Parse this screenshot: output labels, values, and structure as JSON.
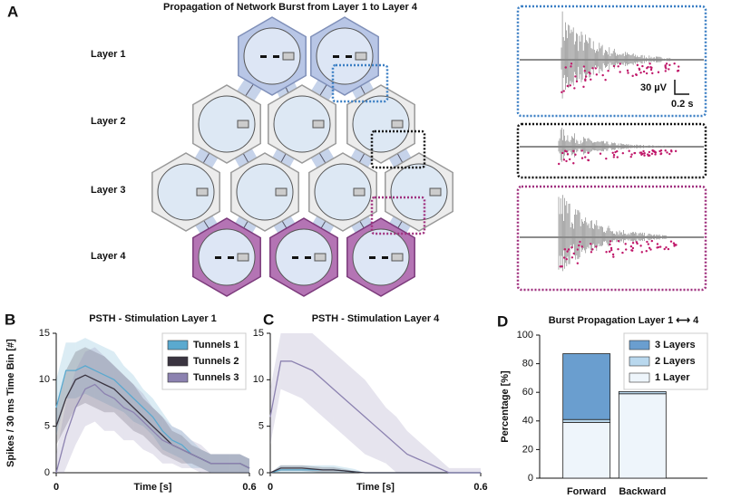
{
  "panel_a": {
    "letter": "A",
    "title": "Propagation of Network Burst from Layer 1 to Layer 4",
    "layers": [
      "Layer 1",
      "Layer 2",
      "Layer 3",
      "Layer 4"
    ],
    "scale_bar": {
      "voltage": "30 µV",
      "time": "0.2 s"
    }
  },
  "chart_data": [
    {
      "type": "line",
      "panel": "B",
      "title": "PSTH - Stimulation Layer 1",
      "x_label": "Time [s]",
      "y_label": "Spikes / 30 ms Time Bin [#]",
      "x": [
        0,
        0.03,
        0.06,
        0.09,
        0.12,
        0.15,
        0.18,
        0.21,
        0.24,
        0.27,
        0.3,
        0.33,
        0.36,
        0.39,
        0.42,
        0.45,
        0.48,
        0.51,
        0.54,
        0.57,
        0.6
      ],
      "xlim": [
        0,
        0.6
      ],
      "xticks": [
        0,
        0.6
      ],
      "ylim": [
        0,
        15
      ],
      "yticks": [
        0,
        5,
        10,
        15
      ],
      "legend": "upper right",
      "series": [
        {
          "name": "Tunnels 1",
          "color": "#5aa9cf",
          "values": [
            7,
            11,
            11,
            11.5,
            11,
            10.5,
            10,
            9,
            8,
            7,
            6,
            4.5,
            3.5,
            3,
            2,
            1.5,
            1,
            1,
            1,
            1,
            0.5
          ],
          "error": [
            3,
            3,
            3,
            3,
            3,
            3,
            3,
            2.5,
            2.5,
            2,
            2,
            2,
            1.5,
            1.5,
            1.5,
            1,
            1,
            1,
            1,
            1,
            1
          ]
        },
        {
          "name": "Tunnels 2",
          "color": "#3a3440",
          "values": [
            5,
            8,
            10,
            10.5,
            10,
            9.5,
            9,
            8,
            7,
            6,
            5,
            4,
            3,
            2.5,
            2,
            1.5,
            1,
            1,
            1,
            1,
            0.5
          ],
          "error": [
            2,
            3,
            3,
            3,
            3,
            3,
            2.5,
            2.5,
            2.5,
            2,
            2,
            2,
            1.5,
            1.5,
            1,
            1,
            1,
            1,
            1,
            1,
            1
          ]
        },
        {
          "name": "Tunnels 3",
          "color": "#8c82b0",
          "values": [
            0,
            4,
            7,
            9,
            9.5,
            8.5,
            8,
            7,
            6.5,
            5.5,
            4.5,
            3.5,
            3,
            2.5,
            2,
            1.5,
            1,
            1,
            1,
            1,
            0.5
          ],
          "error": [
            2,
            3.5,
            4,
            4,
            4,
            4,
            3.5,
            3.5,
            3,
            3,
            2.5,
            2.5,
            2,
            2,
            1.5,
            1.5,
            1,
            1,
            1,
            1,
            1
          ]
        }
      ]
    },
    {
      "type": "line",
      "panel": "C",
      "title": "PSTH - Stimulation Layer 4",
      "x_label": "Time [s]",
      "x": [
        0,
        0.03,
        0.06,
        0.09,
        0.12,
        0.15,
        0.18,
        0.21,
        0.24,
        0.27,
        0.3,
        0.33,
        0.36,
        0.39,
        0.42,
        0.45,
        0.48,
        0.51,
        0.54,
        0.57,
        0.6
      ],
      "xlim": [
        0,
        0.6
      ],
      "xticks": [
        0,
        0.6
      ],
      "ylim": [
        0,
        15
      ],
      "yticks": [
        0,
        5,
        10,
        15
      ],
      "series": [
        {
          "color": "#5aa9cf",
          "values": [
            0,
            0.3,
            0.3,
            0.3,
            0.3,
            0.3,
            0.3,
            0.2,
            0.1,
            0,
            0,
            0,
            0,
            0,
            0,
            0,
            0,
            0,
            0,
            0,
            0
          ],
          "error": [
            0,
            0.5,
            0.5,
            0.5,
            0.5,
            0.5,
            0.5,
            0.4,
            0.3,
            0,
            0,
            0,
            0,
            0,
            0,
            0,
            0,
            0,
            0,
            0,
            0
          ]
        },
        {
          "color": "#3a3440",
          "values": [
            0,
            0.5,
            0.5,
            0.5,
            0.4,
            0.3,
            0.3,
            0.2,
            0.1,
            0,
            0,
            0,
            0,
            0,
            0,
            0,
            0,
            0,
            0,
            0,
            0
          ],
          "error": [
            0,
            0.3,
            0.3,
            0.3,
            0.3,
            0.3,
            0.3,
            0.2,
            0.1,
            0,
            0,
            0,
            0,
            0,
            0,
            0,
            0,
            0,
            0,
            0,
            0
          ]
        },
        {
          "color": "#8c82b0",
          "values": [
            6,
            12,
            12,
            11.5,
            11,
            10,
            9,
            8,
            7,
            6,
            5,
            4,
            3,
            2,
            1.5,
            1,
            0.5,
            0,
            0,
            0,
            0
          ],
          "error": [
            3,
            3,
            3.5,
            3.5,
            4,
            4,
            4,
            4,
            4,
            4,
            3.5,
            3,
            3,
            2.5,
            2,
            1.5,
            1,
            0.5,
            0.5,
            0.5,
            0.5
          ]
        }
      ]
    },
    {
      "type": "stacked_bar",
      "panel": "D",
      "title": "Burst Propagation Layer 1 ⟷ 4",
      "y_label": "Percentage [%]",
      "categories": [
        "Forward",
        "Backward"
      ],
      "ylim": [
        0,
        100
      ],
      "yticks": [
        0,
        20,
        40,
        60,
        80,
        100
      ],
      "legend": "upper right",
      "series": [
        {
          "name": "1 Layer",
          "color": "#eef5fb",
          "values": [
            39,
            59
          ]
        },
        {
          "name": "2 Layers",
          "color": "#b9d8ee",
          "values": [
            2,
            1.5
          ]
        },
        {
          "name": "3 Layers",
          "color": "#6a9ecf",
          "values": [
            46,
            0
          ]
        }
      ]
    }
  ]
}
